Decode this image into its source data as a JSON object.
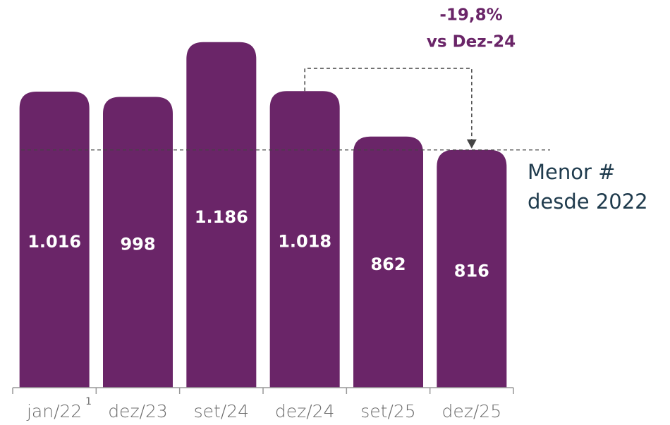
{
  "chart_data": {
    "type": "bar",
    "categories": [
      "jan/22",
      "dez/23",
      "set/24",
      "dez/24",
      "set/25",
      "dez/25"
    ],
    "category_footnote": "1",
    "values": [
      1016,
      998,
      1186,
      1018,
      862,
      816
    ],
    "value_labels": [
      "1.016",
      "998",
      "1.186",
      "1.018",
      "862",
      "816"
    ],
    "color": "#6a2568",
    "ylim": [
      0,
      1200
    ],
    "reference_note": [
      "Menor #",
      "desde 2022"
    ],
    "change_note": [
      "-19,8%",
      "vs Dez-24"
    ]
  }
}
